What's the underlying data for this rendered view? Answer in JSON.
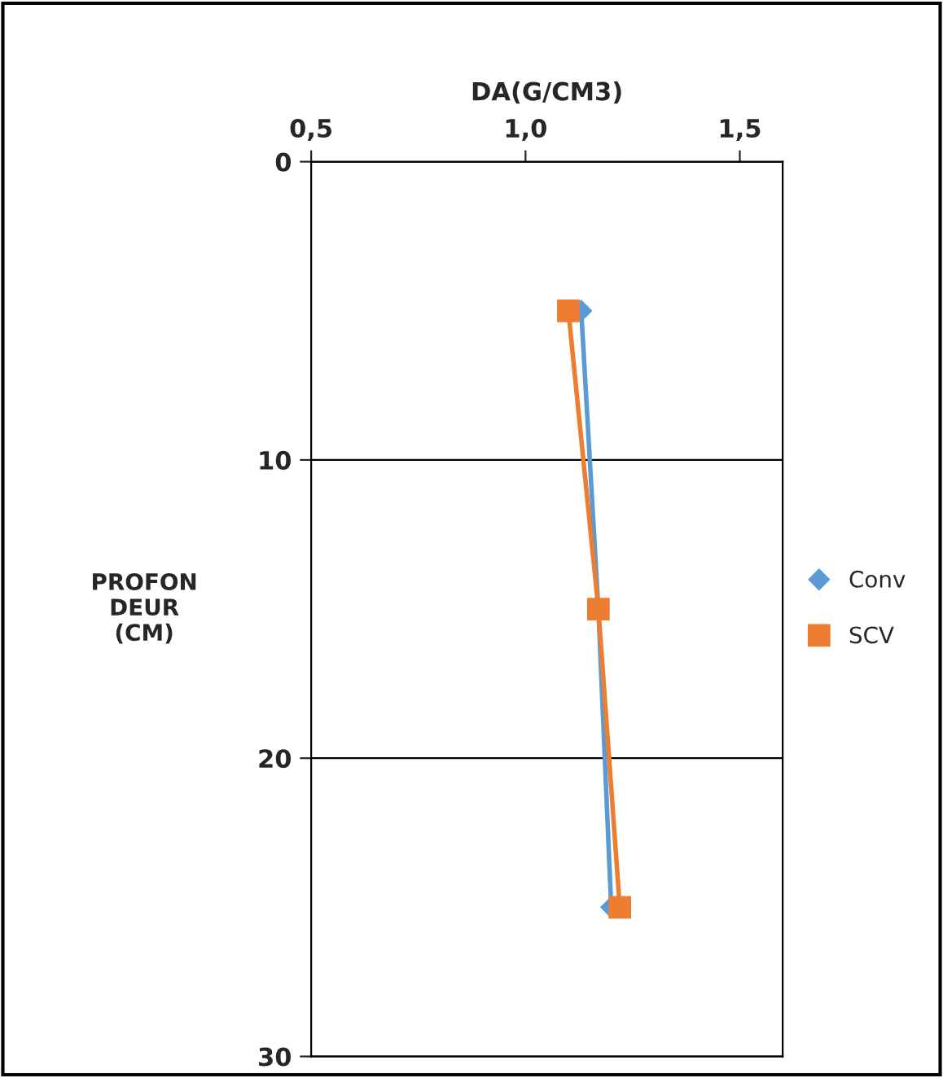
{
  "chart_data": {
    "type": "line",
    "orientation": "horizontal",
    "xlabel": "DA(G/CM3)",
    "ylabel": "PROFON\nDEUR\n(CM)",
    "x": [
      5,
      15,
      25
    ],
    "series": [
      {
        "name": "Conv",
        "color": "#5b9bd5",
        "marker": "diamond",
        "values": [
          1.13,
          1.17,
          1.2
        ]
      },
      {
        "name": "SCV",
        "color": "#ed7d31",
        "marker": "square",
        "values": [
          1.1,
          1.17,
          1.22
        ]
      }
    ],
    "xlim": [
      0.5,
      1.6
    ],
    "xticks": [
      {
        "value": 0.5,
        "label": "0,5"
      },
      {
        "value": 1.0,
        "label": "1,0"
      },
      {
        "value": 1.5,
        "label": "1,5"
      }
    ],
    "ylim": [
      30,
      0
    ],
    "yticks": [
      0,
      10,
      20,
      30
    ],
    "grid": "y",
    "legend": "right"
  }
}
